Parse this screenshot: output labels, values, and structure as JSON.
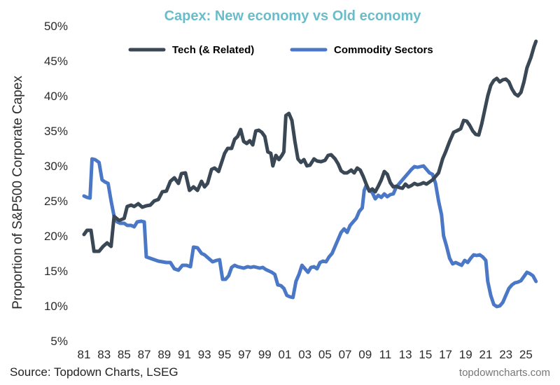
{
  "chart_data": {
    "type": "line",
    "title": "Capex: New economy vs Old economy",
    "ylabel": "Proportion of S&P500 Corporate Capex",
    "xlabel": "",
    "ylim": [
      5,
      50
    ],
    "xlim": [
      1981,
      2026.3
    ],
    "yticks": [
      "5%",
      "10%",
      "15%",
      "20%",
      "25%",
      "30%",
      "35%",
      "40%",
      "45%",
      "50%"
    ],
    "ytick_values": [
      5,
      10,
      15,
      20,
      25,
      30,
      35,
      40,
      45,
      50
    ],
    "xticks": [
      "81",
      "83",
      "85",
      "87",
      "89",
      "91",
      "93",
      "95",
      "97",
      "99",
      "01",
      "03",
      "05",
      "07",
      "09",
      "11",
      "13",
      "15",
      "17",
      "19",
      "21",
      "23",
      "25"
    ],
    "xtick_values": [
      1981,
      1983,
      1985,
      1987,
      1989,
      1991,
      1993,
      1995,
      1997,
      1999,
      2001,
      2003,
      2005,
      2007,
      2009,
      2011,
      2013,
      2015,
      2017,
      2019,
      2021,
      2023,
      2025
    ],
    "legend_position": "top",
    "series": [
      {
        "name": "Tech (& Related)",
        "color": "#3a4754",
        "points": [
          [
            1981.0,
            20.2
          ],
          [
            1981.3,
            20.8
          ],
          [
            1981.7,
            20.8
          ],
          [
            1982.0,
            17.8
          ],
          [
            1982.5,
            17.8
          ],
          [
            1982.9,
            18.5
          ],
          [
            1983.3,
            19.0
          ],
          [
            1983.7,
            18.5
          ],
          [
            1984.0,
            22.8
          ],
          [
            1984.5,
            22.2
          ],
          [
            1985.0,
            22.5
          ],
          [
            1985.3,
            24.2
          ],
          [
            1985.7,
            24.4
          ],
          [
            1986.0,
            24.2
          ],
          [
            1986.4,
            24.6
          ],
          [
            1986.8,
            24.1
          ],
          [
            1987.2,
            24.3
          ],
          [
            1987.6,
            24.4
          ],
          [
            1988.0,
            25.0
          ],
          [
            1988.4,
            25.2
          ],
          [
            1988.8,
            26.3
          ],
          [
            1989.2,
            26.4
          ],
          [
            1989.6,
            27.8
          ],
          [
            1990.0,
            28.3
          ],
          [
            1990.4,
            27.5
          ],
          [
            1990.7,
            28.9
          ],
          [
            1991.1,
            29.0
          ],
          [
            1991.5,
            26.5
          ],
          [
            1991.9,
            27.0
          ],
          [
            1992.3,
            26.5
          ],
          [
            1992.7,
            27.8
          ],
          [
            1993.0,
            27.0
          ],
          [
            1993.3,
            27.5
          ],
          [
            1993.7,
            29.5
          ],
          [
            1994.0,
            29.7
          ],
          [
            1994.4,
            29.2
          ],
          [
            1994.7,
            30.5
          ],
          [
            1995.0,
            31.8
          ],
          [
            1995.3,
            32.5
          ],
          [
            1995.7,
            32.5
          ],
          [
            1996.0,
            33.8
          ],
          [
            1996.3,
            34.2
          ],
          [
            1996.6,
            35.2
          ],
          [
            1996.9,
            33.5
          ],
          [
            1997.2,
            33.2
          ],
          [
            1997.5,
            33.6
          ],
          [
            1997.8,
            33.0
          ],
          [
            1998.1,
            35.0
          ],
          [
            1998.4,
            35.1
          ],
          [
            1998.7,
            34.8
          ],
          [
            1999.0,
            34.2
          ],
          [
            1999.3,
            32.0
          ],
          [
            1999.6,
            31.8
          ],
          [
            1999.8,
            30.0
          ],
          [
            2000.1,
            31.5
          ],
          [
            2000.4,
            30.9
          ],
          [
            2000.7,
            31.5
          ],
          [
            2000.9,
            32.0
          ],
          [
            2001.1,
            37.2
          ],
          [
            2001.4,
            37.5
          ],
          [
            2001.7,
            36.5
          ],
          [
            2002.0,
            33.5
          ],
          [
            2002.3,
            31.0
          ],
          [
            2002.6,
            30.5
          ],
          [
            2002.9,
            30.9
          ],
          [
            2003.2,
            30.0
          ],
          [
            2003.5,
            30.1
          ],
          [
            2003.9,
            31.0
          ],
          [
            2004.2,
            30.7
          ],
          [
            2004.6,
            30.6
          ],
          [
            2005.0,
            30.8
          ],
          [
            2005.3,
            31.5
          ],
          [
            2005.6,
            31.6
          ],
          [
            2006.0,
            31.0
          ],
          [
            2006.3,
            30.3
          ],
          [
            2006.6,
            29.3
          ],
          [
            2006.9,
            29.0
          ],
          [
            2007.2,
            29.0
          ],
          [
            2007.6,
            29.4
          ],
          [
            2007.9,
            29.0
          ],
          [
            2008.2,
            29.7
          ],
          [
            2008.5,
            29.4
          ],
          [
            2008.8,
            28.5
          ],
          [
            2009.1,
            27.4
          ],
          [
            2009.4,
            26.4
          ],
          [
            2009.7,
            26.7
          ],
          [
            2010.0,
            26.3
          ],
          [
            2010.3,
            27.1
          ],
          [
            2010.6,
            28.0
          ],
          [
            2010.9,
            29.2
          ],
          [
            2011.2,
            28.8
          ],
          [
            2011.5,
            27.6
          ],
          [
            2011.8,
            27.0
          ],
          [
            2012.1,
            27.1
          ],
          [
            2012.4,
            26.9
          ],
          [
            2012.7,
            26.8
          ],
          [
            2013.0,
            27.4
          ],
          [
            2013.3,
            27.0
          ],
          [
            2013.6,
            27.2
          ],
          [
            2013.9,
            27.5
          ],
          [
            2014.2,
            27.3
          ],
          [
            2014.5,
            27.4
          ],
          [
            2014.8,
            27.6
          ],
          [
            2015.1,
            27.4
          ],
          [
            2015.4,
            27.7
          ],
          [
            2015.7,
            28.0
          ],
          [
            2016.0,
            28.5
          ],
          [
            2016.3,
            29.0
          ],
          [
            2016.7,
            31.0
          ],
          [
            2017.0,
            32.0
          ],
          [
            2017.4,
            33.5
          ],
          [
            2017.8,
            34.8
          ],
          [
            2018.1,
            35.0
          ],
          [
            2018.5,
            35.3
          ],
          [
            2018.8,
            36.5
          ],
          [
            2019.1,
            36.4
          ],
          [
            2019.4,
            35.8
          ],
          [
            2019.7,
            35.0
          ],
          [
            2020.0,
            34.5
          ],
          [
            2020.3,
            34.4
          ],
          [
            2020.6,
            36.0
          ],
          [
            2020.9,
            38.0
          ],
          [
            2021.2,
            40.0
          ],
          [
            2021.5,
            41.5
          ],
          [
            2021.8,
            42.2
          ],
          [
            2022.1,
            42.5
          ],
          [
            2022.4,
            42.0
          ],
          [
            2022.7,
            42.3
          ],
          [
            2023.0,
            42.4
          ],
          [
            2023.3,
            42.0
          ],
          [
            2023.6,
            41.0
          ],
          [
            2023.9,
            40.3
          ],
          [
            2024.2,
            40.0
          ],
          [
            2024.5,
            40.5
          ],
          [
            2024.8,
            42.0
          ],
          [
            2025.1,
            44.0
          ],
          [
            2025.5,
            45.5
          ],
          [
            2025.8,
            47.0
          ],
          [
            2026.0,
            47.8
          ]
        ]
      },
      {
        "name": "Commodity Sectors",
        "color": "#4a78c6",
        "points": [
          [
            1981.0,
            25.7
          ],
          [
            1981.3,
            25.5
          ],
          [
            1981.6,
            25.4
          ],
          [
            1981.8,
            31.0
          ],
          [
            1982.1,
            30.9
          ],
          [
            1982.5,
            30.5
          ],
          [
            1982.8,
            28.0
          ],
          [
            1983.1,
            27.7
          ],
          [
            1983.4,
            27.5
          ],
          [
            1983.7,
            25.0
          ],
          [
            1984.0,
            22.8
          ],
          [
            1984.3,
            22.0
          ],
          [
            1984.6,
            21.8
          ],
          [
            1985.0,
            21.8
          ],
          [
            1985.3,
            21.5
          ],
          [
            1985.7,
            21.5
          ],
          [
            1986.0,
            21.3
          ],
          [
            1986.3,
            22.0
          ],
          [
            1986.7,
            22.1
          ],
          [
            1987.0,
            22.0
          ],
          [
            1987.2,
            17.0
          ],
          [
            1987.6,
            16.8
          ],
          [
            1988.0,
            16.6
          ],
          [
            1988.4,
            16.4
          ],
          [
            1988.8,
            16.3
          ],
          [
            1989.2,
            16.2
          ],
          [
            1989.6,
            16.2
          ],
          [
            1990.0,
            15.3
          ],
          [
            1990.4,
            15.1
          ],
          [
            1990.8,
            15.8
          ],
          [
            1991.2,
            15.8
          ],
          [
            1991.6,
            15.6
          ],
          [
            1991.9,
            18.4
          ],
          [
            1992.3,
            18.3
          ],
          [
            1992.7,
            17.5
          ],
          [
            1993.0,
            17.3
          ],
          [
            1993.4,
            16.8
          ],
          [
            1993.8,
            16.3
          ],
          [
            1994.2,
            16.5
          ],
          [
            1994.5,
            16.6
          ],
          [
            1994.8,
            13.8
          ],
          [
            1995.1,
            13.8
          ],
          [
            1995.4,
            14.3
          ],
          [
            1995.7,
            15.5
          ],
          [
            1996.0,
            15.8
          ],
          [
            1996.3,
            15.6
          ],
          [
            1996.6,
            15.5
          ],
          [
            1996.9,
            15.4
          ],
          [
            1997.3,
            15.6
          ],
          [
            1997.6,
            15.5
          ],
          [
            1997.9,
            15.6
          ],
          [
            1998.2,
            15.5
          ],
          [
            1998.5,
            15.4
          ],
          [
            1998.8,
            15.5
          ],
          [
            1999.1,
            15.2
          ],
          [
            1999.4,
            15.0
          ],
          [
            1999.7,
            14.8
          ],
          [
            2000.0,
            14.5
          ],
          [
            2000.3,
            13.0
          ],
          [
            2000.6,
            12.9
          ],
          [
            2000.9,
            12.5
          ],
          [
            2001.2,
            11.5
          ],
          [
            2001.5,
            11.3
          ],
          [
            2001.8,
            11.2
          ],
          [
            2002.1,
            13.5
          ],
          [
            2002.4,
            14.5
          ],
          [
            2002.7,
            15.8
          ],
          [
            2003.0,
            15.3
          ],
          [
            2003.3,
            14.8
          ],
          [
            2003.6,
            15.5
          ],
          [
            2003.9,
            15.6
          ],
          [
            2004.2,
            15.3
          ],
          [
            2004.5,
            16.2
          ],
          [
            2004.8,
            16.4
          ],
          [
            2005.1,
            16.3
          ],
          [
            2005.4,
            17.0
          ],
          [
            2005.7,
            17.5
          ],
          [
            2006.0,
            18.5
          ],
          [
            2006.3,
            19.5
          ],
          [
            2006.6,
            20.5
          ],
          [
            2006.9,
            21.0
          ],
          [
            2007.2,
            20.5
          ],
          [
            2007.5,
            21.5
          ],
          [
            2007.8,
            22.0
          ],
          [
            2008.1,
            22.5
          ],
          [
            2008.4,
            23.5
          ],
          [
            2008.7,
            24.0
          ],
          [
            2008.9,
            26.5
          ],
          [
            2009.1,
            27.2
          ],
          [
            2009.4,
            26.5
          ],
          [
            2009.7,
            26.2
          ],
          [
            2010.0,
            25.3
          ],
          [
            2010.3,
            25.8
          ],
          [
            2010.6,
            25.5
          ],
          [
            2010.9,
            26.0
          ],
          [
            2011.2,
            25.6
          ],
          [
            2011.5,
            25.9
          ],
          [
            2011.8,
            26.0
          ],
          [
            2012.1,
            27.0
          ],
          [
            2012.4,
            27.5
          ],
          [
            2012.7,
            28.0
          ],
          [
            2013.0,
            28.5
          ],
          [
            2013.3,
            29.0
          ],
          [
            2013.6,
            29.5
          ],
          [
            2013.9,
            29.9
          ],
          [
            2014.2,
            29.8
          ],
          [
            2014.5,
            29.9
          ],
          [
            2014.8,
            30.0
          ],
          [
            2015.1,
            29.5
          ],
          [
            2015.4,
            29.0
          ],
          [
            2015.7,
            28.8
          ],
          [
            2016.0,
            27.5
          ],
          [
            2016.3,
            25.0
          ],
          [
            2016.6,
            23.0
          ],
          [
            2016.8,
            20.0
          ],
          [
            2017.1,
            18.5
          ],
          [
            2017.4,
            16.8
          ],
          [
            2017.7,
            16.0
          ],
          [
            2018.0,
            16.2
          ],
          [
            2018.3,
            16.0
          ],
          [
            2018.6,
            15.8
          ],
          [
            2018.9,
            16.5
          ],
          [
            2019.2,
            16.2
          ],
          [
            2019.5,
            16.8
          ],
          [
            2019.8,
            17.3
          ],
          [
            2020.1,
            17.2
          ],
          [
            2020.4,
            17.3
          ],
          [
            2020.7,
            17.0
          ],
          [
            2021.0,
            16.5
          ],
          [
            2021.2,
            13.5
          ],
          [
            2021.5,
            11.5
          ],
          [
            2021.8,
            10.2
          ],
          [
            2022.1,
            9.9
          ],
          [
            2022.4,
            10.0
          ],
          [
            2022.7,
            10.5
          ],
          [
            2023.0,
            11.5
          ],
          [
            2023.3,
            12.5
          ],
          [
            2023.6,
            13.0
          ],
          [
            2023.9,
            13.3
          ],
          [
            2024.2,
            13.4
          ],
          [
            2024.5,
            13.6
          ],
          [
            2024.8,
            14.2
          ],
          [
            2025.1,
            14.8
          ],
          [
            2025.4,
            14.6
          ],
          [
            2025.7,
            14.3
          ],
          [
            2026.0,
            13.5
          ]
        ]
      }
    ]
  },
  "source": "Source: Topdown Charts, LSEG",
  "watermark": "topdowncharts.com",
  "colors": {
    "title": "#6bbcc9",
    "tech": "#3a4754",
    "commodity": "#4a78c6"
  }
}
